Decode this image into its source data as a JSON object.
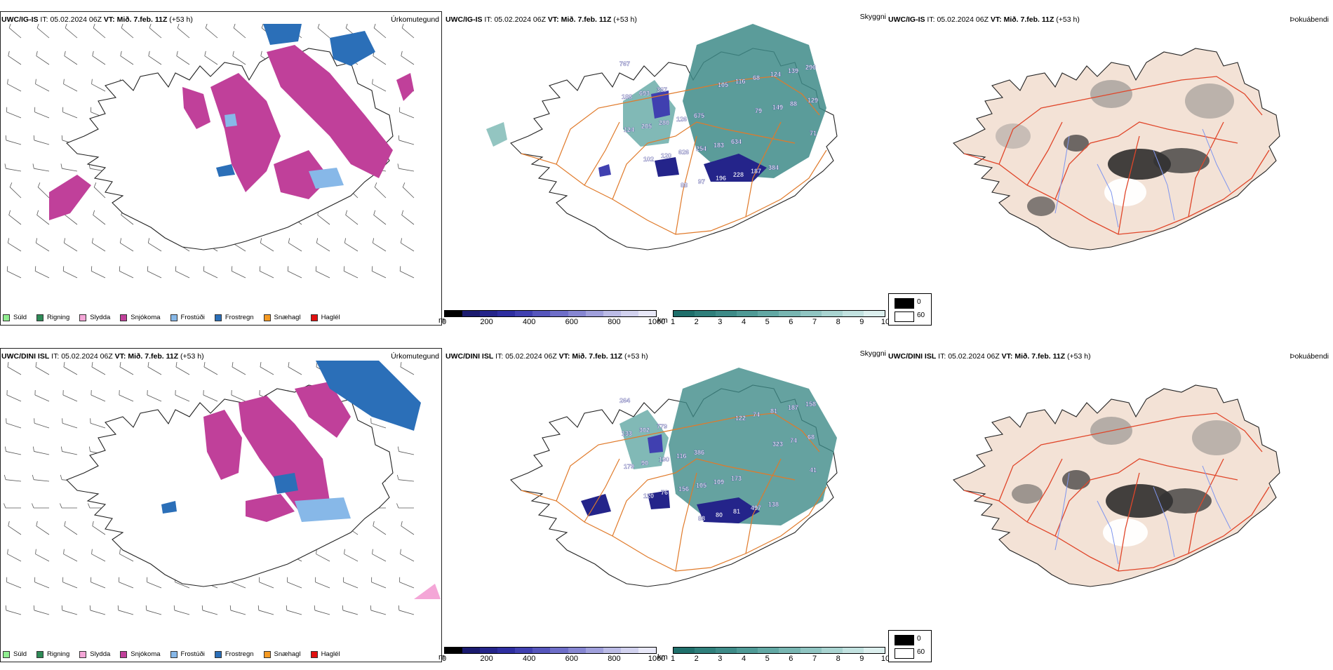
{
  "rows": [
    {
      "model": "UWC/IG-IS",
      "it_label": "IT:",
      "it": "05.02.2024 06Z",
      "vt_label": "VT:",
      "vt": "Mið. 7.feb. 11Z",
      "lead": "(+53 h)",
      "precip_title": "Úrkomutegund",
      "cloud_title": "Skyggni",
      "fog_title": "Þokuábendi"
    },
    {
      "model": "UWC/DINI ISL",
      "it_label": "IT:",
      "it": "05.02.2024 06Z",
      "vt_label": "VT:",
      "vt": "Mið. 7.feb. 11Z",
      "lead": "(+53 h)",
      "precip_title": "Úrkomutegund",
      "cloud_title": "Skyggni",
      "fog_title": "Þokuábendi"
    }
  ],
  "precip_legend": [
    {
      "label": "Súld",
      "color": "#90ee90"
    },
    {
      "label": "Rigning",
      "color": "#2e8b57"
    },
    {
      "label": "Slydda",
      "color": "#f4a6d7"
    },
    {
      "label": "Snjókoma",
      "color": "#c0409a"
    },
    {
      "label": "Frostúði",
      "color": "#87b8e8"
    },
    {
      "label": "Frostregn",
      "color": "#2b6fb8"
    },
    {
      "label": "Snæhagl",
      "color": "#f59a23"
    },
    {
      "label": "Haglél",
      "color": "#e01010"
    }
  ],
  "ceiling_scale": {
    "unit": "m",
    "ticks": [
      "0",
      "200",
      "400",
      "600",
      "800",
      "1000"
    ],
    "colors": [
      "#000000",
      "#1a1a6e",
      "#24248a",
      "#2e2ea0",
      "#4040b0",
      "#5656bc",
      "#6e6ec8",
      "#8686d2",
      "#a0a0dc",
      "#bbbbe6",
      "#d2d2ef",
      "#e8e8f8"
    ]
  },
  "visibility_scale": {
    "unit": "km",
    "ticks": [
      "1",
      "2",
      "3",
      "4",
      "5",
      "6",
      "7",
      "8",
      "9",
      "10"
    ],
    "colors": [
      "#1f6f6b",
      "#2f7f7b",
      "#3e8b88",
      "#4f9a96",
      "#62a8a4",
      "#78b6b2",
      "#90c5c2",
      "#a9d4d1",
      "#c2e2e0",
      "#dcefee"
    ]
  },
  "cloud_key": {
    "opaque": "0",
    "clear": "60"
  },
  "ceiling_labels_row1": [
    "767",
    "367",
    "675",
    "634",
    "384",
    "296",
    "693",
    "126",
    "183",
    "187",
    "139",
    "188",
    "280",
    "254",
    "228",
    "124",
    "129",
    "205",
    "626",
    "196",
    "68",
    "88",
    "124",
    "120",
    "97",
    "116",
    "149",
    "71",
    "102",
    "88",
    "105",
    "79"
  ],
  "ceiling_labels_row2": [
    "264",
    "779",
    "386",
    "173",
    "138",
    "158",
    "302",
    "116",
    "109",
    "497",
    "187",
    "133",
    "190",
    "105",
    "81",
    "81",
    "68",
    "90",
    "156",
    "80",
    "74",
    "74",
    "179",
    "76",
    "88",
    "122",
    "323",
    "41",
    "120"
  ],
  "colors": {
    "land_fog": "#f3e2d6",
    "road_orange": "#e07a2a",
    "road_red": "#e0462a",
    "river_blue": "#7f95ee",
    "snow": "#c0409a",
    "frostregn": "#2b6fb8",
    "frostudi": "#87b8e8",
    "cloud_teal": "#3e8b88",
    "ceiling_navy": "#24248a"
  }
}
